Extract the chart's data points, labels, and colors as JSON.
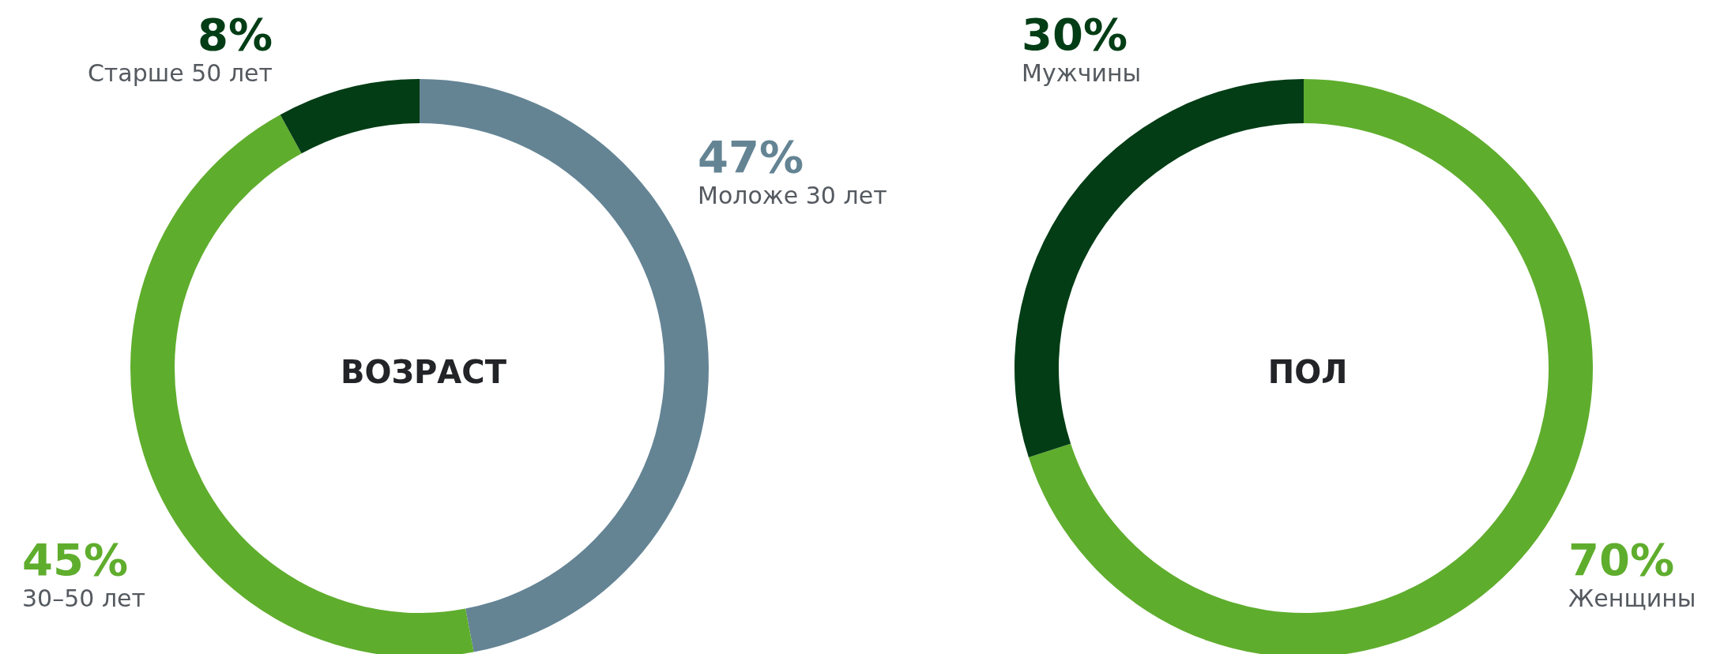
{
  "chart_data": [
    {
      "type": "donut",
      "title": "ВОЗРАСТ",
      "categories": [
        "Моложе 30 лет",
        "30–50 лет",
        "Старше 50 лет"
      ],
      "values": [
        47,
        45,
        8
      ],
      "value_labels": [
        "47%",
        "45%",
        "8%"
      ],
      "colors": [
        "#648494",
        "#5fad2d",
        "#023d15"
      ],
      "legend": false
    },
    {
      "type": "donut",
      "title": "ПОЛ",
      "categories": [
        "Женщины",
        "Мужчины"
      ],
      "values": [
        70,
        30
      ],
      "value_labels": [
        "70%",
        "30%"
      ],
      "colors": [
        "#5fad2d",
        "#023d15"
      ],
      "legend": false
    }
  ]
}
